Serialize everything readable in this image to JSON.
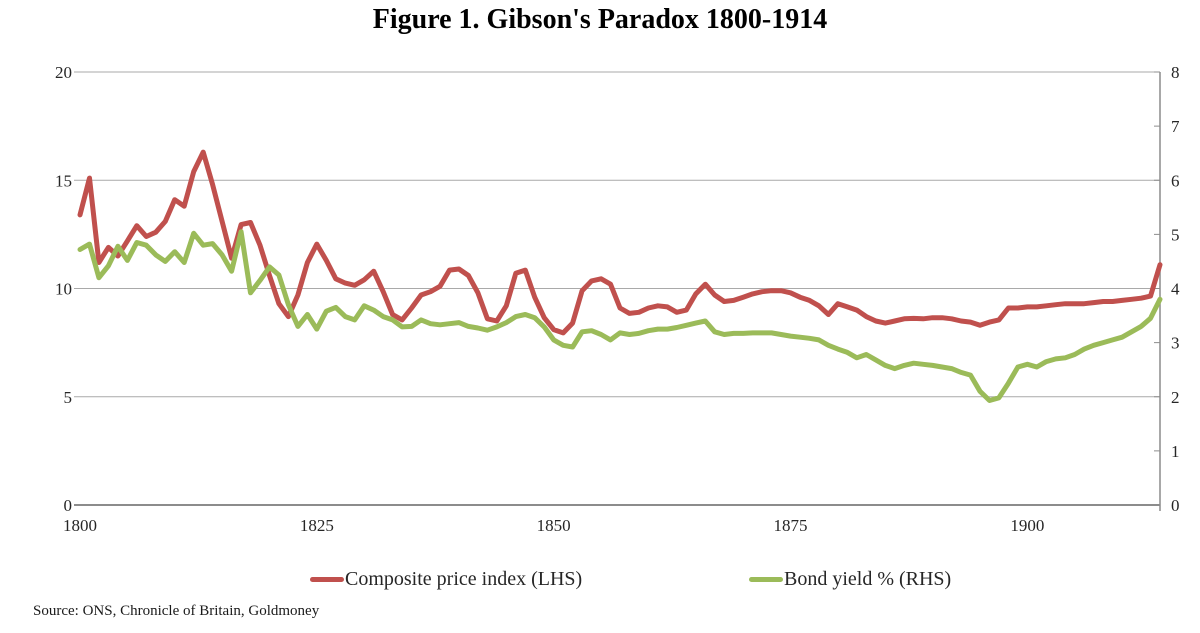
{
  "title": "Figure 1. Gibson's Paradox 1800-1914",
  "source": "Source: ONS, Chronicle of Britain, Goldmoney",
  "colors": {
    "price_line": "#C0504D",
    "yield_line": "#9BBB59",
    "gridline": "#a9a9a9",
    "axis": "#8c8c8c"
  },
  "legend": [
    {
      "label": "Composite price index (LHS)",
      "color": "#C0504D"
    },
    {
      "label": "Bond yield % (RHS)",
      "color": "#9BBB59"
    }
  ],
  "chart_data": {
    "type": "line",
    "title": "Figure 1. Gibson's Paradox 1800-1914",
    "xlabel": "",
    "ylabel_left": "",
    "ylabel_right": "",
    "x_range": [
      1800,
      1914
    ],
    "x_label_ticks": [
      1800,
      1825,
      1850,
      1875,
      1900
    ],
    "left_axis": {
      "min": 0,
      "max": 20,
      "ticks": [
        0,
        5,
        10,
        15,
        20
      ]
    },
    "right_axis": {
      "min": 0,
      "max": 8,
      "ticks": [
        0,
        1,
        2,
        3,
        4,
        5,
        6,
        7,
        8
      ]
    },
    "grid": "horizontal",
    "legend_position": "bottom",
    "series": [
      {
        "name": "Composite price index (LHS)",
        "axis": "left",
        "color": "#C0504D",
        "x_start": 1800,
        "x_step": 1,
        "values": [
          13.4,
          15.1,
          11.2,
          11.9,
          11.5,
          12.2,
          12.9,
          12.4,
          12.6,
          13.1,
          14.1,
          13.8,
          15.4,
          16.3,
          14.8,
          13.1,
          11.4,
          12.95,
          13.05,
          12.0,
          10.6,
          9.3,
          8.7,
          9.7,
          11.2,
          12.05,
          11.3,
          10.45,
          10.25,
          10.15,
          10.4,
          10.8,
          9.85,
          8.8,
          8.55,
          9.1,
          9.7,
          9.85,
          10.1,
          10.85,
          10.9,
          10.6,
          9.8,
          8.6,
          8.5,
          9.2,
          10.7,
          10.85,
          9.6,
          8.65,
          8.1,
          7.95,
          8.4,
          9.9,
          10.35,
          10.45,
          10.2,
          9.1,
          8.85,
          8.9,
          9.1,
          9.2,
          9.15,
          8.9,
          9.0,
          9.75,
          10.2,
          9.7,
          9.4,
          9.45,
          9.6,
          9.75,
          9.85,
          9.9,
          9.9,
          9.8,
          9.6,
          9.45,
          9.2,
          8.8,
          9.3,
          9.15,
          9.0,
          8.7,
          8.5,
          8.4,
          8.5,
          8.6,
          8.62,
          8.6,
          8.65,
          8.65,
          8.6,
          8.5,
          8.45,
          8.3,
          8.45,
          8.55,
          9.1,
          9.1,
          9.15,
          9.15,
          9.2,
          9.25,
          9.3,
          9.3,
          9.3,
          9.35,
          9.4,
          9.4,
          9.45,
          9.5,
          9.55,
          9.65,
          11.1
        ]
      },
      {
        "name": "Bond yield % (RHS)",
        "axis": "right",
        "color": "#9BBB59",
        "x_start": 1800,
        "x_step": 1,
        "values": [
          4.72,
          4.82,
          4.2,
          4.42,
          4.78,
          4.52,
          4.85,
          4.8,
          4.62,
          4.5,
          4.68,
          4.48,
          5.02,
          4.8,
          4.83,
          4.62,
          4.32,
          5.05,
          3.92,
          4.15,
          4.4,
          4.25,
          3.7,
          3.3,
          3.52,
          3.25,
          3.58,
          3.65,
          3.48,
          3.42,
          3.68,
          3.6,
          3.48,
          3.42,
          3.29,
          3.3,
          3.42,
          3.35,
          3.33,
          3.35,
          3.37,
          3.3,
          3.27,
          3.23,
          3.29,
          3.37,
          3.48,
          3.52,
          3.46,
          3.29,
          3.05,
          2.95,
          2.92,
          3.2,
          3.22,
          3.15,
          3.05,
          3.18,
          3.15,
          3.17,
          3.22,
          3.25,
          3.25,
          3.28,
          3.32,
          3.36,
          3.4,
          3.2,
          3.15,
          3.17,
          3.17,
          3.18,
          3.18,
          3.18,
          3.15,
          3.12,
          3.1,
          3.08,
          3.05,
          2.95,
          2.88,
          2.82,
          2.72,
          2.78,
          2.68,
          2.58,
          2.52,
          2.58,
          2.62,
          2.6,
          2.58,
          2.55,
          2.52,
          2.45,
          2.4,
          2.1,
          1.93,
          1.98,
          2.25,
          2.55,
          2.6,
          2.55,
          2.65,
          2.7,
          2.72,
          2.78,
          2.88,
          2.95,
          3.0,
          3.05,
          3.1,
          3.2,
          3.3,
          3.45,
          3.8
        ]
      }
    ]
  }
}
